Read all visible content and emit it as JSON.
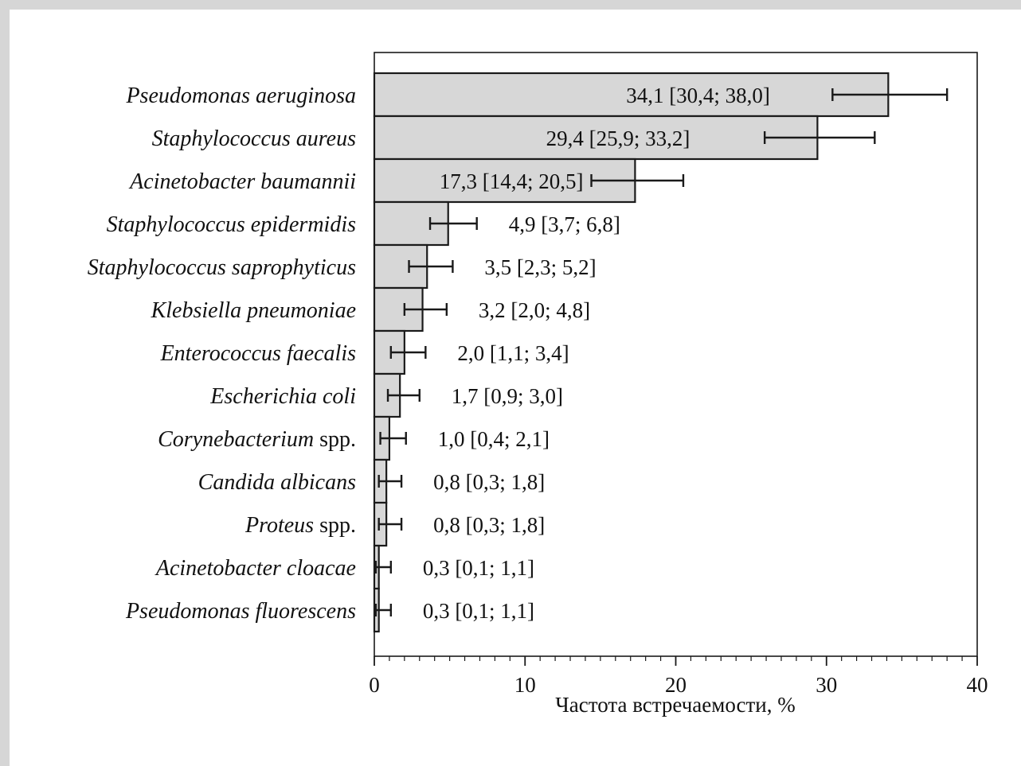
{
  "chart_data": {
    "type": "bar",
    "orientation": "horizontal",
    "xlabel": "Частота встречаемости, %",
    "ylabel": "",
    "xlim": [
      0,
      40
    ],
    "xticks": [
      0,
      10,
      20,
      30,
      40
    ],
    "xticks_minor_step": 1,
    "grid": false,
    "legend": "none",
    "colors": {
      "bar_fill": "#d7d7d7",
      "bar_stroke": "#1a1a1a",
      "axis": "#1a1a1a",
      "frame_border": "#d6d6d6"
    },
    "categories": [
      {
        "italic": "Pseudomonas aeruginosa",
        "suffix": ""
      },
      {
        "italic": "Staphylococcus aureus",
        "suffix": ""
      },
      {
        "italic": "Acinetobacter baumannii",
        "suffix": ""
      },
      {
        "italic": "Staphylococcus epidermidis",
        "suffix": ""
      },
      {
        "italic": "Staphylococcus saprophyticus",
        "suffix": ""
      },
      {
        "italic": "Klebsiella pneumoniae",
        "suffix": ""
      },
      {
        "italic": "Enterococcus faecalis",
        "suffix": ""
      },
      {
        "italic": "Escherichia coli",
        "suffix": ""
      },
      {
        "italic": "Corynebacterium",
        "suffix": " spp."
      },
      {
        "italic": "Candida albicans",
        "suffix": ""
      },
      {
        "italic": "Proteus",
        "suffix": " spp."
      },
      {
        "italic": "Acinetobacter cloacae",
        "suffix": ""
      },
      {
        "italic": "Pseudomonas fluorescens",
        "suffix": ""
      }
    ],
    "values": [
      34.1,
      29.4,
      17.3,
      4.9,
      3.5,
      3.2,
      2.0,
      1.7,
      1.0,
      0.8,
      0.8,
      0.3,
      0.3
    ],
    "ci_low": [
      30.4,
      25.9,
      14.4,
      3.7,
      2.3,
      2.0,
      1.1,
      0.9,
      0.4,
      0.3,
      0.3,
      0.1,
      0.1
    ],
    "ci_high": [
      38.0,
      33.2,
      20.5,
      6.8,
      5.2,
      4.8,
      3.4,
      3.0,
      2.1,
      1.8,
      1.8,
      1.1,
      1.1
    ],
    "data_labels": [
      "34,1 [30,4; 38,0]",
      "29,4 [25,9; 33,2]",
      "17,3 [14,4; 20,5]",
      "4,9 [3,7; 6,8]",
      "3,5 [2,3; 5,2]",
      "3,2 [2,0; 4,8]",
      "2,0 [1,1; 3,4]",
      "1,7 [0,9; 3,0]",
      "1,0 [0,4; 2,1]",
      "0,8 [0,3; 1,8]",
      "0,8 [0,3; 1,8]",
      "0,3 [0,1; 1,1]",
      "0,3 [0,1; 1,1]"
    ]
  }
}
